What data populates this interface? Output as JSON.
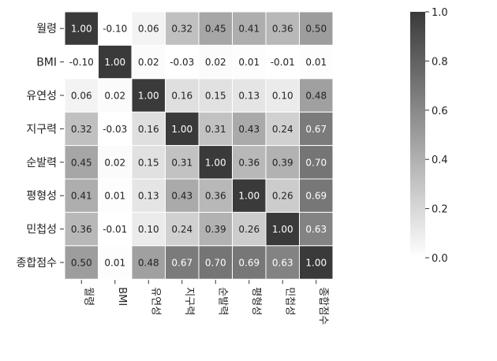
{
  "chart_data": {
    "type": "heatmap",
    "title": "",
    "xlabel": "",
    "ylabel": "",
    "row_labels": [
      "월령",
      "BMI",
      "유연성",
      "지구력",
      "순발력",
      "평형성",
      "민첩성",
      "종합점수"
    ],
    "col_labels": [
      "월령",
      "BMI",
      "유연성",
      "지구력",
      "순발력",
      "평형성",
      "민첩성",
      "종합점수"
    ],
    "values": [
      [
        1.0,
        -0.1,
        0.06,
        0.32,
        0.45,
        0.41,
        0.36,
        0.5
      ],
      [
        -0.1,
        1.0,
        0.02,
        -0.03,
        0.02,
        0.01,
        -0.01,
        0.01
      ],
      [
        0.06,
        0.02,
        1.0,
        0.16,
        0.15,
        0.13,
        0.1,
        0.48
      ],
      [
        0.32,
        -0.03,
        0.16,
        1.0,
        0.31,
        0.43,
        0.24,
        0.67
      ],
      [
        0.45,
        0.02,
        0.15,
        0.31,
        1.0,
        0.36,
        0.39,
        0.7
      ],
      [
        0.41,
        0.01,
        0.13,
        0.43,
        0.36,
        1.0,
        0.26,
        0.69
      ],
      [
        0.36,
        -0.01,
        0.1,
        0.24,
        0.39,
        0.26,
        1.0,
        0.63
      ],
      [
        0.5,
        0.01,
        0.48,
        0.67,
        0.7,
        0.69,
        0.63,
        1.0
      ]
    ],
    "value_labels": [
      [
        "1.00",
        "-0.10",
        "0.06",
        "0.32",
        "0.45",
        "0.41",
        "0.36",
        "0.50"
      ],
      [
        "-0.10",
        "1.00",
        "0.02",
        "-0.03",
        "0.02",
        "0.01",
        "-0.01",
        "0.01"
      ],
      [
        "0.06",
        "0.02",
        "1.00",
        "0.16",
        "0.15",
        "0.13",
        "0.10",
        "0.48"
      ],
      [
        "0.32",
        "-0.03",
        "0.16",
        "1.00",
        "0.31",
        "0.43",
        "0.24",
        "0.67"
      ],
      [
        "0.45",
        "0.02",
        "0.15",
        "0.31",
        "1.00",
        "0.36",
        "0.39",
        "0.70"
      ],
      [
        "0.41",
        "0.01",
        "0.13",
        "0.43",
        "0.36",
        "1.00",
        "0.26",
        "0.69"
      ],
      [
        "0.36",
        "-0.01",
        "0.10",
        "0.24",
        "0.39",
        "0.26",
        "1.00",
        "0.63"
      ],
      [
        "0.50",
        "0.01",
        "0.48",
        "0.67",
        "0.70",
        "0.69",
        "0.63",
        "1.00"
      ]
    ],
    "colorbar": {
      "range": [
        0.0,
        1.0
      ],
      "ticks": [
        1.0,
        0.8,
        0.6,
        0.4,
        0.2,
        0.0
      ],
      "tick_labels": [
        "1.0",
        "0.8",
        "0.6",
        "0.4",
        "0.2",
        "0.0"
      ],
      "low_color": "#ffffff",
      "high_color": "#3a3a3a"
    },
    "grid": true
  }
}
